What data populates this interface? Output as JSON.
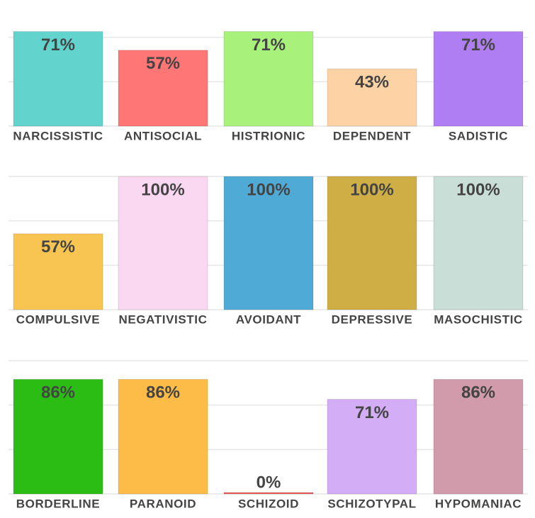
{
  "chart_data": [
    {
      "type": "bar",
      "categories": [
        "NARCISSISTIC",
        "ANTISOCIAL",
        "HISTRIONIC",
        "DEPENDENT",
        "SADISTIC"
      ],
      "values": [
        71,
        57,
        71,
        43,
        71
      ],
      "value_labels": [
        "71%",
        "57%",
        "71%",
        "43%",
        "71%"
      ],
      "colors": [
        "#62d4cd",
        "#fe7676",
        "#a8f27c",
        "#fdd3a5",
        "#b07ef3"
      ],
      "ylim": [
        0,
        100
      ],
      "yticks": [
        0,
        33.33,
        66.67,
        100
      ],
      "grid": true
    },
    {
      "type": "bar",
      "categories": [
        "COMPULSIVE",
        "NEGATIVISTIC",
        "AVOIDANT",
        "DEPRESSIVE",
        "MASOCHISTIC"
      ],
      "values": [
        57,
        100,
        100,
        100,
        100
      ],
      "value_labels": [
        "57%",
        "100%",
        "100%",
        "100%",
        "100%"
      ],
      "colors": [
        "#f8c552",
        "#fbd8f2",
        "#50aad6",
        "#cfae45",
        "#c8ded6"
      ],
      "ylim": [
        0,
        100
      ],
      "yticks": [
        0,
        33.33,
        66.67,
        100
      ],
      "grid": true
    },
    {
      "type": "bar",
      "categories": [
        "BORDERLINE",
        "PARANOID",
        "SCHIZOID",
        "SCHIZOTYPAL",
        "HYPOMANIAC"
      ],
      "values": [
        86,
        86,
        0,
        71,
        86
      ],
      "value_labels": [
        "86%",
        "86%",
        "0%",
        "71%",
        "86%"
      ],
      "colors": [
        "#2cbd14",
        "#fdbb48",
        "#f25c5c",
        "#d3adf6",
        "#d29bab"
      ],
      "ylim": [
        0,
        100
      ],
      "yticks": [
        0,
        33.33,
        66.67,
        100
      ],
      "grid": true
    }
  ]
}
